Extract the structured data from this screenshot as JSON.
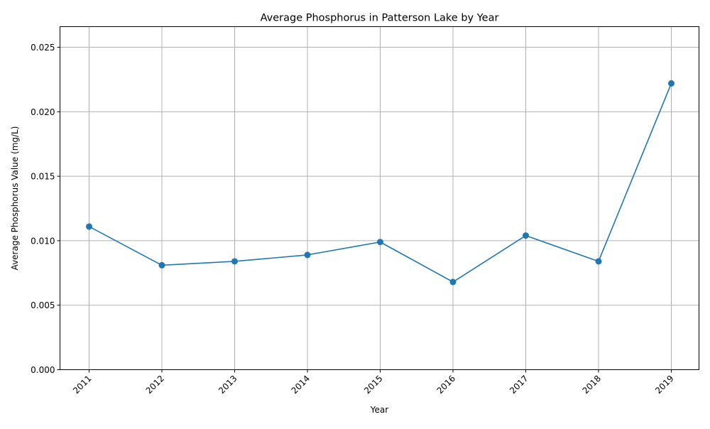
{
  "chart_data": {
    "type": "line",
    "title": "Average Phosphorus in Patterson Lake by Year",
    "xlabel": "Year",
    "ylabel": "Average Phosphorus Value (mg/L)",
    "x": [
      "2011",
      "2012",
      "2013",
      "2014",
      "2015",
      "2016",
      "2017",
      "2018",
      "2019"
    ],
    "series": [
      {
        "values": [
          0.0111,
          0.0081,
          0.0084,
          0.0089,
          0.0099,
          0.0068,
          0.0104,
          0.0084,
          0.0222
        ]
      }
    ],
    "ylim": [
      0,
      0.0266
    ],
    "yticks": [
      "0.000",
      "0.005",
      "0.010",
      "0.015",
      "0.020",
      "0.025"
    ],
    "grid": true,
    "marker": "circle",
    "line_color": "#1f77b4",
    "grid_color": "#b0b0b0",
    "xtick_rotation": "45deg"
  }
}
